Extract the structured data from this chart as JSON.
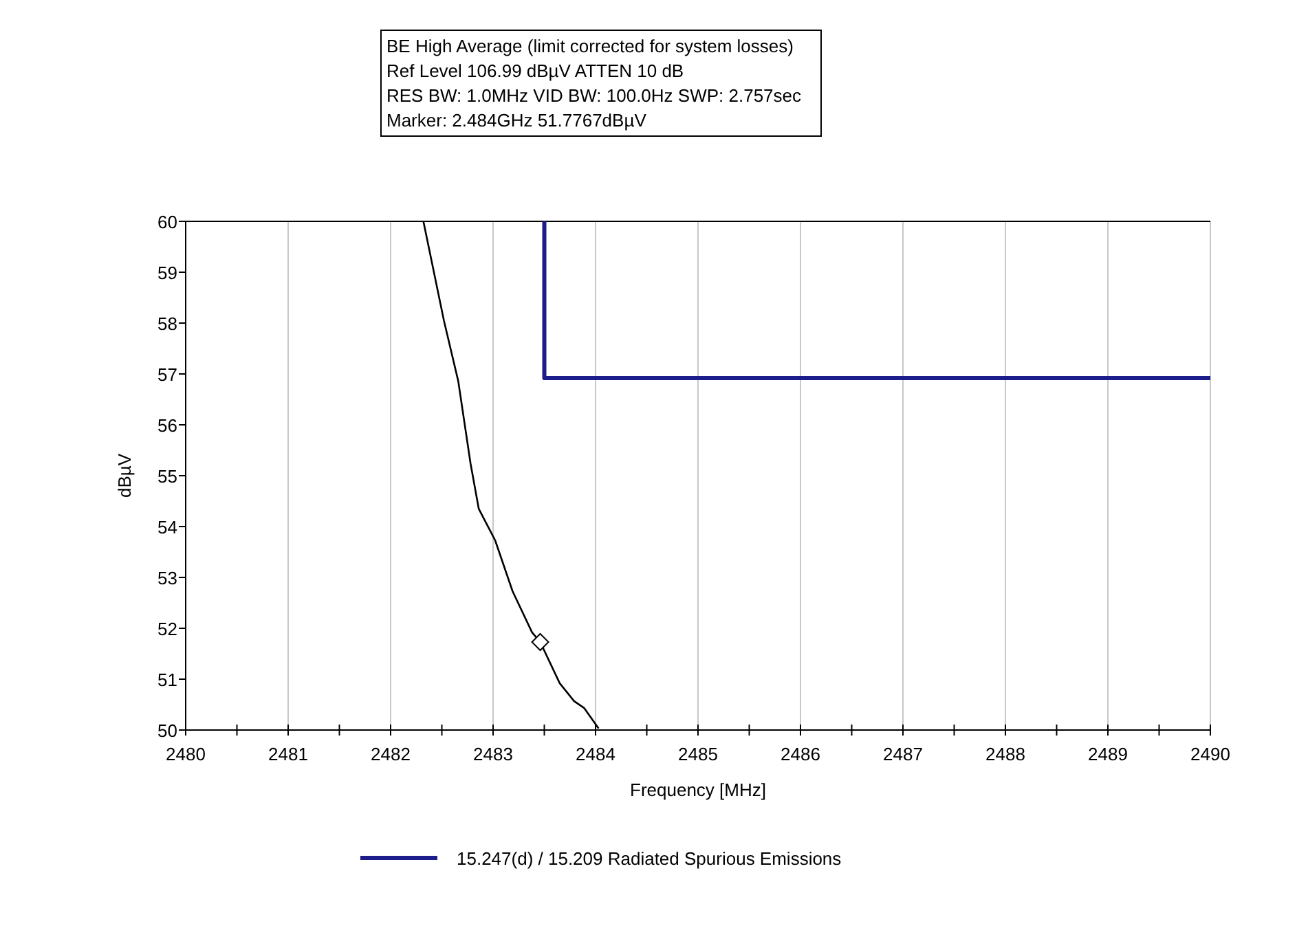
{
  "chart_data": {
    "type": "line",
    "title": "BE High Average (limit corrected for system losses)",
    "annotations": [
      "Ref Level 106.99 dBµV    ATTEN 10 dB",
      "RES BW: 1.0MHz  VID BW: 100.0Hz  SWP: 2.757sec",
      "Marker: 2.484GHz  51.7767dBµV"
    ],
    "xlabel": "Frequency [MHz]",
    "ylabel": "dBµV",
    "xlim": [
      2480,
      2490
    ],
    "xticks": [
      2480,
      2481,
      2482,
      2483,
      2484,
      2485,
      2486,
      2487,
      2488,
      2489,
      2490
    ],
    "ylim": [
      50,
      60
    ],
    "yticks": [
      50,
      51,
      52,
      53,
      54,
      55,
      56,
      57,
      58,
      59,
      60
    ],
    "grid": "x",
    "legend": "bottom",
    "series": [
      {
        "color": "#000000",
        "x": [
          2482.32,
          2482.52,
          2482.66,
          2482.78,
          2482.86,
          2483.02,
          2483.19,
          2483.38,
          2483.46,
          2483.65,
          2483.79,
          2483.89,
          2484.03
        ],
        "values": [
          60,
          58.05,
          56.86,
          55.24,
          54.35,
          53.73,
          52.73,
          51.92,
          51.73,
          50.92,
          50.57,
          50.43,
          50.03
        ]
      },
      {
        "name": "15.247(d) / 15.209 Radiated Spurious Emissions",
        "color": "#1c1c8a",
        "x": [
          2483.5,
          2483.5,
          2490
        ],
        "values": [
          60,
          56.92,
          56.92
        ]
      },
      {
        "type": "scatter",
        "marker": "diamond",
        "color": "#000000",
        "x": [
          2483.46
        ],
        "values": [
          51.73
        ]
      }
    ]
  }
}
